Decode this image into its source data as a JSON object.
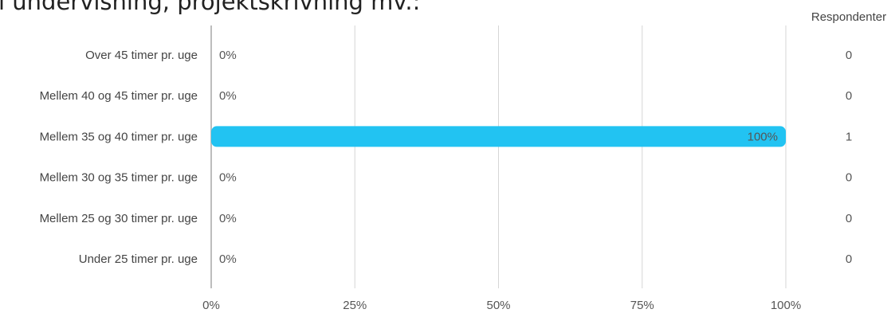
{
  "page": {
    "title": "i undervisning, projektskrivning mv.:"
  },
  "chart_data": {
    "type": "bar",
    "orientation": "horizontal",
    "title": "",
    "xlabel": "",
    "ylabel": "",
    "categories": [
      "Over 45 timer pr. uge",
      "Mellem 40 og 45 timer pr. uge",
      "Mellem 35 og 40 timer pr. uge",
      "Mellem 30 og 35 timer pr. uge",
      "Mellem 25 og 30 timer pr. uge",
      "Under 25 timer pr. uge"
    ],
    "values": [
      0,
      0,
      100,
      0,
      0,
      0
    ],
    "value_labels": [
      "0%",
      "0%",
      "100%",
      "0%",
      "0%",
      "0%"
    ],
    "respondents_header": "Respondenter",
    "respondents": [
      "0",
      "0",
      "1",
      "0",
      "0",
      "0"
    ],
    "xlim": [
      0,
      100
    ],
    "x_ticks": [
      0,
      25,
      50,
      75,
      100
    ],
    "x_tick_labels": [
      "0%",
      "25%",
      "50%",
      "75%",
      "100%"
    ],
    "grid": true,
    "legend": "none",
    "bar_color": "#22c3f2",
    "axis_color": "#bdbdbd",
    "grid_color": "#d6d6d6",
    "text_color": "#444444"
  }
}
